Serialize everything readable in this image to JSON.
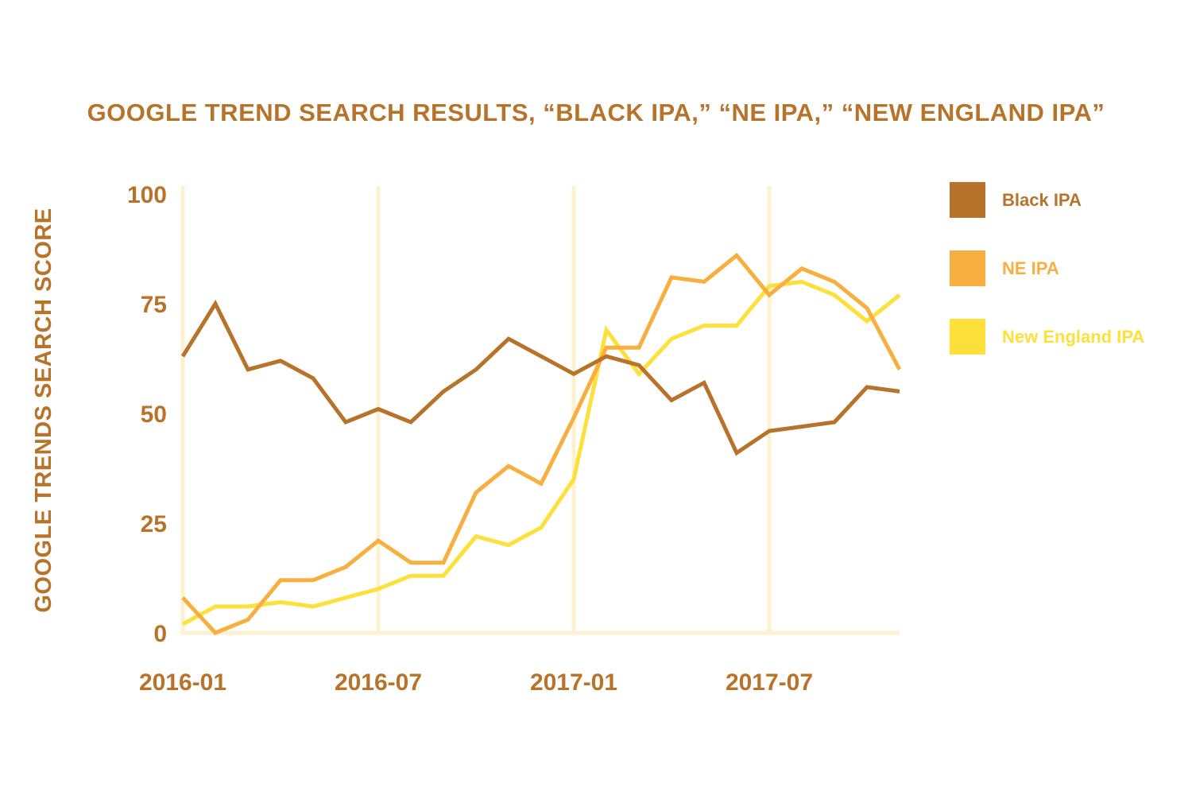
{
  "chart_data": {
    "type": "line",
    "title": "GOOGLE TREND SEARCH RESULTS, “BLACK IPA,” “NE IPA,” “NEW ENGLAND IPA”",
    "xlabel": "",
    "ylabel": "GOOGLE TRENDS SEARCH SCORE",
    "ylim": [
      0,
      100
    ],
    "y_ticks": [
      "0",
      "25",
      "50",
      "75",
      "100"
    ],
    "x": [
      "2016-01",
      "2016-02",
      "2016-03",
      "2016-04",
      "2016-05",
      "2016-06",
      "2016-07",
      "2016-08",
      "2016-09",
      "2016-10",
      "2016-11",
      "2016-12",
      "2017-01",
      "2017-02",
      "2017-03",
      "2017-04",
      "2017-05",
      "2017-06",
      "2017-07",
      "2017-08",
      "2017-09",
      "2017-10",
      "2017-11"
    ],
    "x_ticks": [
      "2016-01",
      "2016-07",
      "2017-01",
      "2017-07"
    ],
    "grid": "vertical lines at labeled x ticks",
    "legend_position": "right",
    "series": [
      {
        "name": "Black IPA",
        "color": "#b8732a",
        "values": [
          63,
          75,
          60,
          62,
          58,
          48,
          51,
          48,
          55,
          60,
          67,
          63,
          59,
          63,
          61,
          53,
          57,
          41,
          46,
          47,
          48,
          56,
          55
        ]
      },
      {
        "name": "NE IPA",
        "color": "#f8af40",
        "values": [
          8,
          0,
          3,
          12,
          12,
          15,
          21,
          16,
          16,
          32,
          38,
          34,
          49,
          65,
          65,
          81,
          80,
          86,
          77,
          83,
          80,
          74,
          60
        ]
      },
      {
        "name": "New England IPA",
        "color": "#fde03a",
        "values": [
          2,
          6,
          6,
          7,
          6,
          8,
          10,
          13,
          13,
          22,
          20,
          24,
          35,
          69,
          59,
          67,
          70,
          70,
          79,
          80,
          77,
          71,
          77
        ]
      }
    ]
  }
}
